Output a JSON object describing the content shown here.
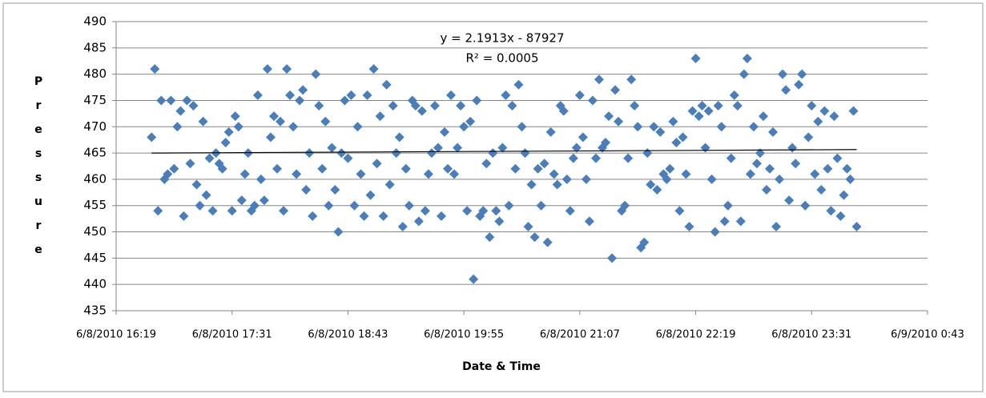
{
  "chart_data": {
    "type": "scatter",
    "y_label": "Pressure",
    "x_label": "Date & Time",
    "trendline": {
      "label": "y = 2.1913x - 87927",
      "r2_label": "R² = 0.0005",
      "slope": 2.1913,
      "intercept": -87927,
      "color": "#000000"
    },
    "ylim": [
      435,
      490
    ],
    "yticks": [
      435,
      440,
      445,
      450,
      455,
      460,
      465,
      470,
      475,
      480,
      485,
      490
    ],
    "grid": true,
    "xlim": [
      "6/8/2010 16:19",
      "6/9/2010 0:43"
    ],
    "xticks": [
      "6/8/2010 16:19",
      "6/8/2010 17:31",
      "6/8/2010 18:43",
      "6/8/2010 19:55",
      "6/8/2010 21:07",
      "6/8/2010 22:19",
      "6/8/2010 23:31",
      "6/9/2010 0:43"
    ],
    "color": "#4a7ebb",
    "x": [
      "6/8/2010 16:41",
      "6/8/2010 16:43",
      "6/8/2010 16:45",
      "6/8/2010 16:47",
      "6/8/2010 16:49",
      "6/8/2010 16:51",
      "6/8/2010 16:53",
      "6/8/2010 16:55",
      "6/8/2010 16:57",
      "6/8/2010 16:59",
      "6/8/2010 17:01",
      "6/8/2010 17:03",
      "6/8/2010 17:05",
      "6/8/2010 17:07",
      "6/8/2010 17:09",
      "6/8/2010 17:11",
      "6/8/2010 17:13",
      "6/8/2010 17:15",
      "6/8/2010 17:17",
      "6/8/2010 17:19",
      "6/8/2010 17:21",
      "6/8/2010 17:23",
      "6/8/2010 17:25",
      "6/8/2010 17:27",
      "6/8/2010 17:29",
      "6/8/2010 17:31",
      "6/8/2010 17:33",
      "6/8/2010 17:35",
      "6/8/2010 17:37",
      "6/8/2010 17:39",
      "6/8/2010 17:41",
      "6/8/2010 17:43",
      "6/8/2010 17:45",
      "6/8/2010 17:47",
      "6/8/2010 17:49",
      "6/8/2010 17:51",
      "6/8/2010 17:53",
      "6/8/2010 17:55",
      "6/8/2010 17:57",
      "6/8/2010 17:59",
      "6/8/2010 18:01",
      "6/8/2010 18:03",
      "6/8/2010 18:05",
      "6/8/2010 18:07",
      "6/8/2010 18:09",
      "6/8/2010 18:11",
      "6/8/2010 18:13",
      "6/8/2010 18:15",
      "6/8/2010 18:17",
      "6/8/2010 18:19",
      "6/8/2010 18:21",
      "6/8/2010 18:23",
      "6/8/2010 18:25",
      "6/8/2010 18:27",
      "6/8/2010 18:29",
      "6/8/2010 18:31",
      "6/8/2010 18:33",
      "6/8/2010 18:35",
      "6/8/2010 18:37",
      "6/8/2010 18:39",
      "6/8/2010 18:41",
      "6/8/2010 18:43",
      "6/8/2010 18:45",
      "6/8/2010 18:47",
      "6/8/2010 18:49",
      "6/8/2010 18:51",
      "6/8/2010 18:53",
      "6/8/2010 18:55",
      "6/8/2010 18:57",
      "6/8/2010 18:59",
      "6/8/2010 19:01",
      "6/8/2010 19:03",
      "6/8/2010 19:05",
      "6/8/2010 19:07",
      "6/8/2010 19:09",
      "6/8/2010 19:11",
      "6/8/2010 19:13",
      "6/8/2010 19:15",
      "6/8/2010 19:17",
      "6/8/2010 19:19",
      "6/8/2010 19:21",
      "6/8/2010 19:23",
      "6/8/2010 19:25",
      "6/8/2010 19:27",
      "6/8/2010 19:29",
      "6/8/2010 19:31",
      "6/8/2010 19:33",
      "6/8/2010 19:35",
      "6/8/2010 19:37",
      "6/8/2010 19:39",
      "6/8/2010 19:41",
      "6/8/2010 19:43",
      "6/8/2010 19:45",
      "6/8/2010 19:47",
      "6/8/2010 19:49",
      "6/8/2010 19:51",
      "6/8/2010 19:53",
      "6/8/2010 19:55",
      "6/8/2010 19:57",
      "6/8/2010 19:59",
      "6/8/2010 20:01",
      "6/8/2010 20:03",
      "6/8/2010 20:05",
      "6/8/2010 20:07",
      "6/8/2010 20:09",
      "6/8/2010 20:11",
      "6/8/2010 20:13",
      "6/8/2010 20:15",
      "6/8/2010 20:17",
      "6/8/2010 20:19",
      "6/8/2010 20:21",
      "6/8/2010 20:23",
      "6/8/2010 20:25",
      "6/8/2010 20:27",
      "6/8/2010 20:29",
      "6/8/2010 20:31",
      "6/8/2010 20:33",
      "6/8/2010 20:35",
      "6/8/2010 20:37",
      "6/8/2010 20:39",
      "6/8/2010 20:41",
      "6/8/2010 20:43",
      "6/8/2010 20:45",
      "6/8/2010 20:47",
      "6/8/2010 20:49",
      "6/8/2010 20:51",
      "6/8/2010 20:53",
      "6/8/2010 20:55",
      "6/8/2010 20:57",
      "6/8/2010 20:59",
      "6/8/2010 21:01",
      "6/8/2010 21:03",
      "6/8/2010 21:05",
      "6/8/2010 21:07",
      "6/8/2010 21:09",
      "6/8/2010 21:11",
      "6/8/2010 21:13",
      "6/8/2010 21:15",
      "6/8/2010 21:17",
      "6/8/2010 21:19",
      "6/8/2010 21:21",
      "6/8/2010 21:23",
      "6/8/2010 21:25",
      "6/8/2010 21:27",
      "6/8/2010 21:29",
      "6/8/2010 21:31",
      "6/8/2010 21:33",
      "6/8/2010 21:35",
      "6/8/2010 21:37",
      "6/8/2010 21:39",
      "6/8/2010 21:41",
      "6/8/2010 21:43",
      "6/8/2010 21:45",
      "6/8/2010 21:47",
      "6/8/2010 21:49",
      "6/8/2010 21:51",
      "6/8/2010 21:53",
      "6/8/2010 21:55",
      "6/8/2010 21:57",
      "6/8/2010 21:59",
      "6/8/2010 22:01",
      "6/8/2010 22:03",
      "6/8/2010 22:05",
      "6/8/2010 22:07",
      "6/8/2010 22:09",
      "6/8/2010 22:11",
      "6/8/2010 22:13",
      "6/8/2010 22:15",
      "6/8/2010 22:17",
      "6/8/2010 22:19",
      "6/8/2010 22:21",
      "6/8/2010 22:23",
      "6/8/2010 22:25",
      "6/8/2010 22:27",
      "6/8/2010 22:29",
      "6/8/2010 22:31",
      "6/8/2010 22:33",
      "6/8/2010 22:35",
      "6/8/2010 22:37",
      "6/8/2010 22:39",
      "6/8/2010 22:41",
      "6/8/2010 22:43",
      "6/8/2010 22:45",
      "6/8/2010 22:47",
      "6/8/2010 22:49",
      "6/8/2010 22:51",
      "6/8/2010 22:53",
      "6/8/2010 22:55",
      "6/8/2010 22:57",
      "6/8/2010 22:59",
      "6/8/2010 23:01",
      "6/8/2010 23:03",
      "6/8/2010 23:05",
      "6/8/2010 23:07",
      "6/8/2010 23:09",
      "6/8/2010 23:11",
      "6/8/2010 23:13",
      "6/8/2010 23:15",
      "6/8/2010 23:17",
      "6/8/2010 23:19",
      "6/8/2010 23:21",
      "6/8/2010 23:23",
      "6/8/2010 23:25",
      "6/8/2010 23:27",
      "6/8/2010 23:29",
      "6/8/2010 23:31",
      "6/8/2010 23:33",
      "6/8/2010 23:35",
      "6/8/2010 23:37",
      "6/8/2010 23:39",
      "6/8/2010 23:41",
      "6/8/2010 23:43",
      "6/8/2010 23:45",
      "6/8/2010 23:47",
      "6/8/2010 23:49",
      "6/8/2010 23:51",
      "6/8/2010 23:53",
      "6/8/2010 23:55",
      "6/8/2010 23:57",
      "6/8/2010 23:59"
    ],
    "values": [
      468,
      481,
      454,
      475,
      460,
      461,
      475,
      462,
      470,
      473,
      453,
      475,
      463,
      474,
      459,
      455,
      471,
      457,
      464,
      454,
      465,
      463,
      462,
      467,
      469,
      454,
      472,
      470,
      456,
      461,
      465,
      454,
      455,
      476,
      460,
      456,
      481,
      468,
      472,
      462,
      471,
      454,
      481,
      476,
      470,
      461,
      475,
      477,
      458,
      465,
      453,
      480,
      474,
      462,
      471,
      455,
      466,
      458,
      450,
      465,
      475,
      464,
      476,
      455,
      470,
      461,
      453,
      476,
      457,
      481,
      463,
      472,
      453,
      478,
      459,
      474,
      465,
      468,
      451,
      462,
      455,
      475,
      474,
      452,
      473,
      454,
      461,
      465,
      474,
      466,
      453,
      469,
      462,
      476,
      461,
      466,
      474,
      470,
      454,
      471,
      441,
      475,
      453,
      454,
      463,
      449,
      465,
      454,
      452,
      466,
      476,
      455,
      474,
      462,
      478,
      470,
      465,
      451,
      459,
      449,
      462,
      455,
      463,
      448,
      469,
      461,
      459,
      474,
      473,
      460,
      454,
      464,
      466,
      476,
      468,
      460,
      452,
      475,
      464,
      479,
      466,
      467,
      472,
      445,
      477,
      471,
      454,
      455,
      464,
      479,
      474,
      470,
      447,
      448,
      465,
      459,
      470,
      458,
      469,
      461,
      460,
      462,
      471,
      467,
      454,
      468,
      461,
      451,
      473,
      483,
      472,
      474,
      466,
      473,
      460,
      450,
      474,
      470,
      452,
      455,
      464,
      476,
      474,
      452,
      480,
      483,
      461,
      470,
      463,
      465,
      472,
      458,
      462,
      469,
      451,
      460,
      480,
      477,
      456,
      466,
      463,
      478,
      480,
      455,
      468,
      474,
      461,
      471,
      458,
      473,
      462,
      454,
      472,
      464,
      453,
      457,
      462,
      460,
      473,
      451
    ]
  }
}
